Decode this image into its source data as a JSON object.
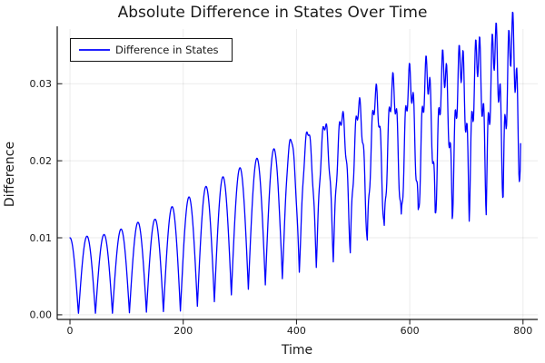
{
  "figure": {
    "background": "#ffffff",
    "title": "Absolute Difference in States Over Time",
    "title_color": "#1a1a1a"
  },
  "axes": {
    "x_label": "Time",
    "y_label": "Difference",
    "spine_color": "#141414",
    "grid_color": "rgba(0,0,0,0.08)",
    "tick_label_color": "#1a1a1a"
  },
  "legend": {
    "label": "Difference in States",
    "border_color": "#141414",
    "background": "#ffffff"
  },
  "chart_data": {
    "type": "line",
    "title": "Absolute Difference in States Over Time",
    "xlabel": "Time",
    "ylabel": "Difference",
    "xlim": [
      -22.5,
      826
    ],
    "ylim": [
      -0.0006,
      0.0371
    ],
    "xticks": {
      "values": [
        0,
        200,
        400,
        600,
        800
      ],
      "labels": [
        "0",
        "200",
        "400",
        "600",
        "800"
      ]
    },
    "yticks": {
      "values": [
        0,
        0.01,
        0.02,
        0.03
      ],
      "labels": [
        "0.00",
        "0.01",
        "0.02",
        "0.03"
      ]
    },
    "grid": true,
    "legend_position": "top-left",
    "series": [
      {
        "name": "Difference in States",
        "color": "#0000ff",
        "line_width": 1.3,
        "model": "abs_cosine_beats",
        "t_start": 0,
        "t_end": 796,
        "t_step": 0.75,
        "oscillation_period": 30.0,
        "min_clamp": 0.0002,
        "peak_envelope": [
          [
            0,
            0.01
          ],
          [
            29,
            0.0102
          ],
          [
            59,
            0.0104
          ],
          [
            89,
            0.0111
          ],
          [
            119,
            0.012
          ],
          [
            150,
            0.0124
          ],
          [
            183,
            0.0142
          ],
          [
            215,
            0.0155
          ],
          [
            245,
            0.0169
          ],
          [
            277,
            0.0182
          ],
          [
            308,
            0.0194
          ],
          [
            339,
            0.0207
          ],
          [
            371,
            0.022
          ],
          [
            402,
            0.0233
          ],
          [
            434,
            0.0243
          ],
          [
            467,
            0.0253
          ],
          [
            498,
            0.0265
          ],
          [
            529,
            0.028
          ],
          [
            560,
            0.0293
          ],
          [
            591,
            0.0304
          ],
          [
            622,
            0.0313
          ],
          [
            654,
            0.0322
          ],
          [
            687,
            0.033
          ],
          [
            718,
            0.034
          ],
          [
            749,
            0.0352
          ],
          [
            780,
            0.0362
          ],
          [
            796,
            0.0355
          ]
        ],
        "trough_envelope": [
          [
            0,
            0.0
          ],
          [
            197,
            0.0005
          ],
          [
            229,
            0.0012
          ],
          [
            260,
            0.0018
          ],
          [
            292,
            0.0028
          ],
          [
            323,
            0.0035
          ],
          [
            358,
            0.0041
          ],
          [
            387,
            0.0051
          ],
          [
            419,
            0.0063
          ],
          [
            451,
            0.0073
          ],
          [
            483,
            0.0082
          ],
          [
            529,
            0.0094
          ],
          [
            591,
            0.0113
          ],
          [
            654,
            0.0133
          ],
          [
            718,
            0.0155
          ],
          [
            780,
            0.0175
          ],
          [
            796,
            0.018
          ]
        ],
        "ripple": {
          "start_t": 360,
          "growth_per_t": 8.8e-06,
          "period": 7.3,
          "phase": 0.8
        }
      }
    ]
  }
}
